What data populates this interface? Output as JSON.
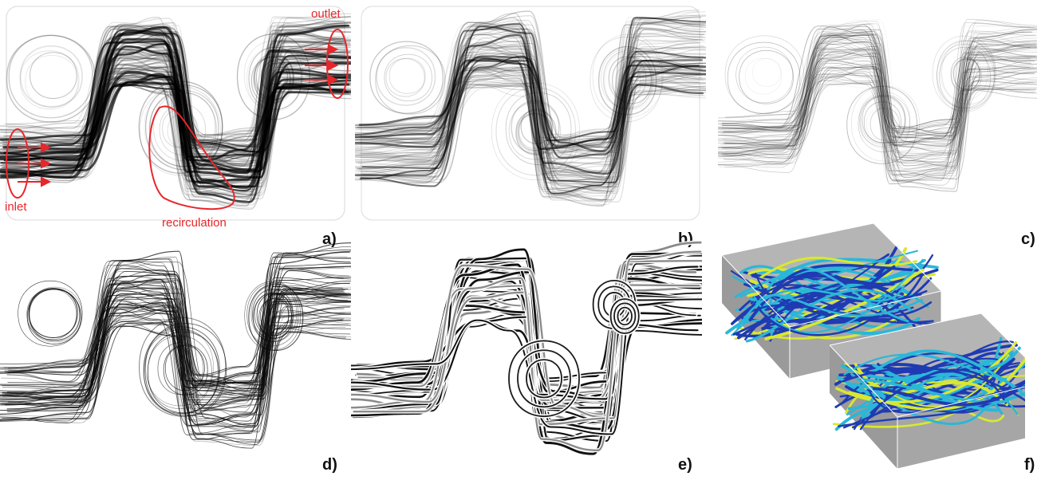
{
  "panels": [
    {
      "id": "a",
      "label": "a)",
      "style": "dense-dark"
    },
    {
      "id": "b",
      "label": "b)",
      "style": "dense-mid"
    },
    {
      "id": "c",
      "label": "c)",
      "style": "sparse-light"
    },
    {
      "id": "d",
      "label": "d)",
      "style": "thin-lines"
    },
    {
      "id": "e",
      "label": "e)",
      "style": "tubes"
    },
    {
      "id": "f",
      "label": "f)",
      "style": "colored-3d"
    }
  ],
  "annotations": {
    "inlet": "inlet",
    "outlet": "outlet",
    "recirculation": "recirculation"
  },
  "colors": {
    "annotation": "#e8262a",
    "box_face": "#9a9a9a",
    "tube_low": "#1f3bb3",
    "tube_mid": "#2ab7d8",
    "tube_high": "#d8e830"
  }
}
